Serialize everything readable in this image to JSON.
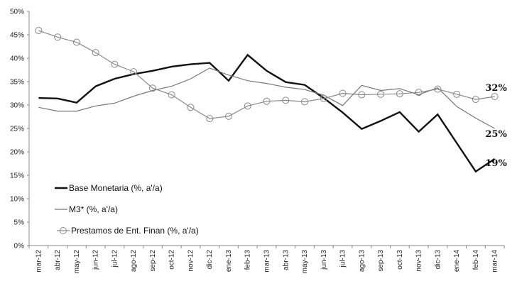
{
  "chart_data": {
    "type": "line",
    "categories": [
      "mar-12",
      "abr-12",
      "may-12",
      "jun-12",
      "jul-12",
      "ago-12",
      "sep-12",
      "oct-12",
      "nov-12",
      "dic-12",
      "ene-13",
      "feb-13",
      "mar-13",
      "abr-13",
      "may-13",
      "jun-13",
      "jul-13",
      "ago-13",
      "sep-13",
      "oct-13",
      "nov-13",
      "dic-13",
      "ene-14",
      "feb-14",
      "mar-14"
    ],
    "ylim": [
      0,
      50
    ],
    "yticks": [
      0,
      5,
      10,
      15,
      20,
      25,
      30,
      35,
      40,
      45,
      50
    ],
    "ytick_labels": [
      "0%",
      "5%",
      "10%",
      "15%",
      "20%",
      "25%",
      "30%",
      "35%",
      "40%",
      "45%",
      "50%"
    ],
    "grid": false,
    "legend_position": "bottom-left",
    "series": [
      {
        "name": "Base Monetaria (%, a'/a)",
        "color": "#111111",
        "style": "thick",
        "values": [
          31.5,
          31.4,
          30.5,
          34.0,
          35.6,
          36.6,
          37.3,
          38.2,
          38.7,
          39.0,
          35.2,
          40.7,
          37.3,
          34.9,
          34.3,
          31.5,
          28.4,
          24.9,
          26.6,
          28.5,
          24.3,
          28.0,
          21.9,
          15.8,
          18.5
        ]
      },
      {
        "name": "M3* (%, a'/a)",
        "color": "#777777",
        "style": "thin",
        "values": [
          29.5,
          28.7,
          28.7,
          29.8,
          30.4,
          31.9,
          33.1,
          34.0,
          35.6,
          37.9,
          36.4,
          35.2,
          34.6,
          33.8,
          33.3,
          32.1,
          29.9,
          34.2,
          33.1,
          33.5,
          32.2,
          33.7,
          29.7,
          27.2,
          25.0
        ]
      },
      {
        "name": "Prestamos de Ent. Finan (%, a'/a)",
        "color": "#888888",
        "style": "marker",
        "values": [
          45.9,
          44.5,
          43.4,
          41.2,
          38.7,
          37.1,
          33.6,
          32.2,
          29.5,
          27.1,
          27.6,
          29.8,
          30.8,
          31.0,
          30.7,
          31.4,
          32.5,
          32.2,
          32.3,
          32.4,
          32.7,
          33.4,
          32.3,
          31.2,
          31.8
        ]
      }
    ],
    "end_labels": [
      {
        "text": "32%",
        "value": 31.8
      },
      {
        "text": "25%",
        "value": 25.0
      },
      {
        "text": "19%",
        "value": 18.5
      }
    ]
  }
}
